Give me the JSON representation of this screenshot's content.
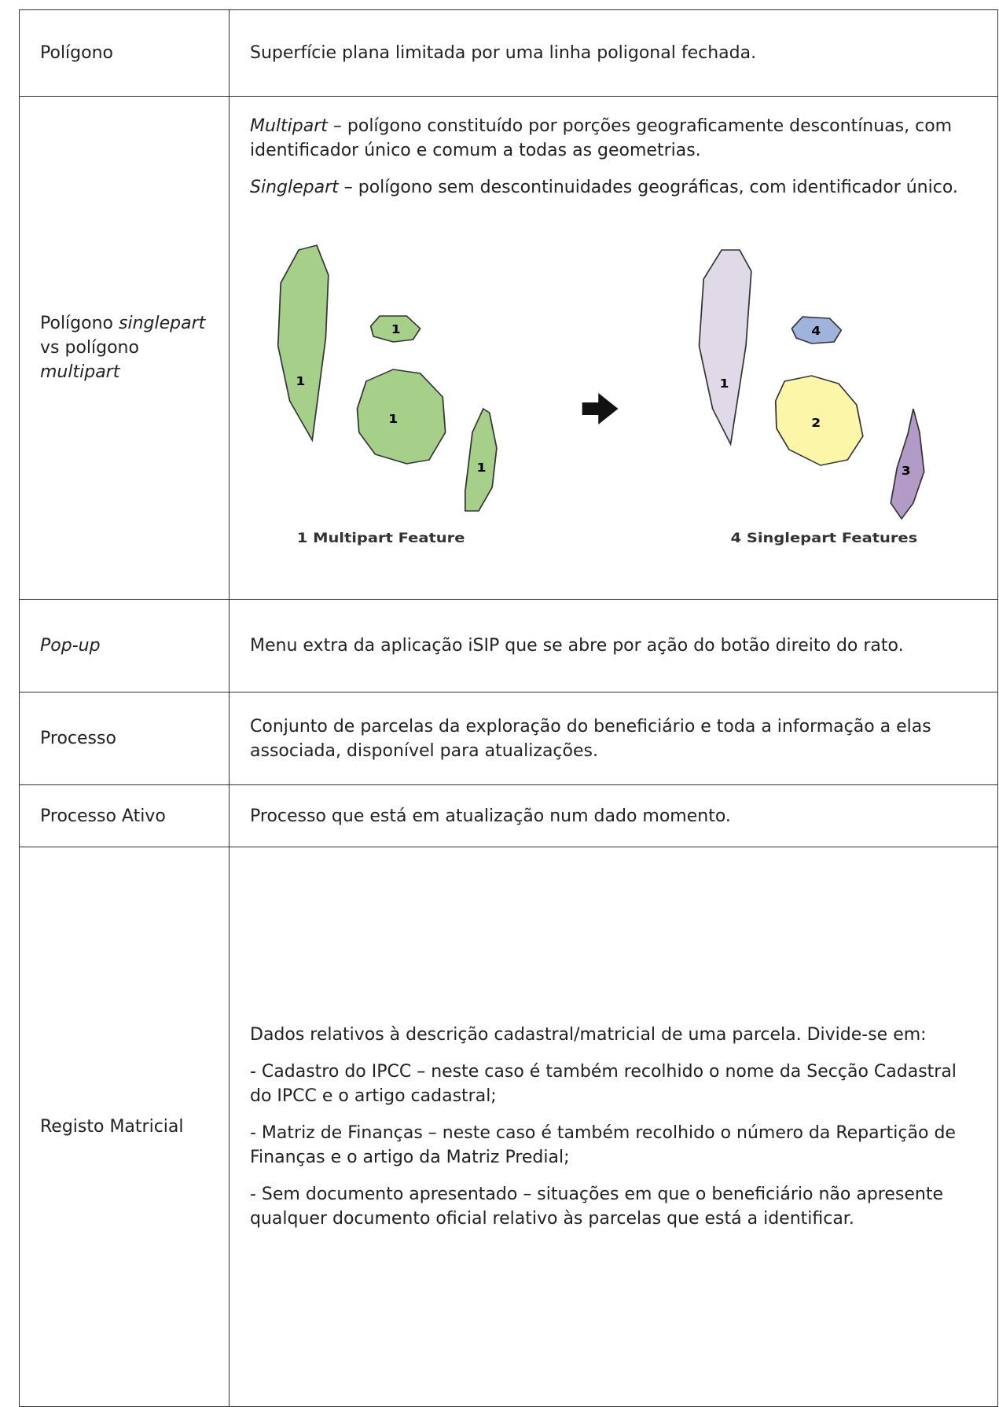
{
  "table": {
    "rows": [
      {
        "term": [
          "Polígono"
        ],
        "definition": [
          [
            "Superfície plana limitada por uma linha poligonal fechada."
          ]
        ]
      },
      {
        "term": [
          "Polígono ",
          "singlepart",
          " vs polígono ",
          "multipart"
        ],
        "definition": [
          [
            "Multipart",
            " – polígono constituído por porções geograficamente descontínuas, com identificador único e comum a todas as geometrias."
          ],
          [
            "Singlepart",
            " – polígono sem descontinuidades geográficas, com identificador único."
          ]
        ],
        "figure": {
          "multipart_labels": [
            "1",
            "1",
            "1",
            "1"
          ],
          "singlepart_labels": [
            "1",
            "4",
            "2",
            "3"
          ],
          "multipart_caption": "1 Multipart Feature",
          "singlepart_caption": "4 Singlepart Features"
        }
      },
      {
        "term": [
          "Pop-up"
        ],
        "definition": [
          [
            "Menu extra da aplicação iSIP que se abre por ação do botão direito do rato."
          ]
        ]
      },
      {
        "term": [
          "Processo"
        ],
        "definition": [
          [
            "Conjunto de parcelas da exploração do beneficiário e toda a informação a elas associada, disponível para atualizações."
          ]
        ]
      },
      {
        "term": [
          "Processo Ativo"
        ],
        "definition": [
          [
            "Processo que está em atualização num dado momento."
          ]
        ]
      },
      {
        "term": [
          "Registo Matricial"
        ],
        "definition": [
          [
            "Dados relativos à descrição cadastral/matricial de uma parcela. Divide-se em:"
          ],
          [
            "- Cadastro do IPCC – neste caso é também recolhido o nome da Secção Cadastral do IPCC e o artigo cadastral;"
          ],
          [
            "- Matriz de Finanças – neste caso é também recolhido o número da Repartição de Finanças e o artigo da Matriz Predial;"
          ],
          [
            "- Sem documento apresentado – situações em que o beneficiário não apresente qualquer documento oficial relativo às parcelas que está a identificar."
          ]
        ]
      }
    ]
  }
}
